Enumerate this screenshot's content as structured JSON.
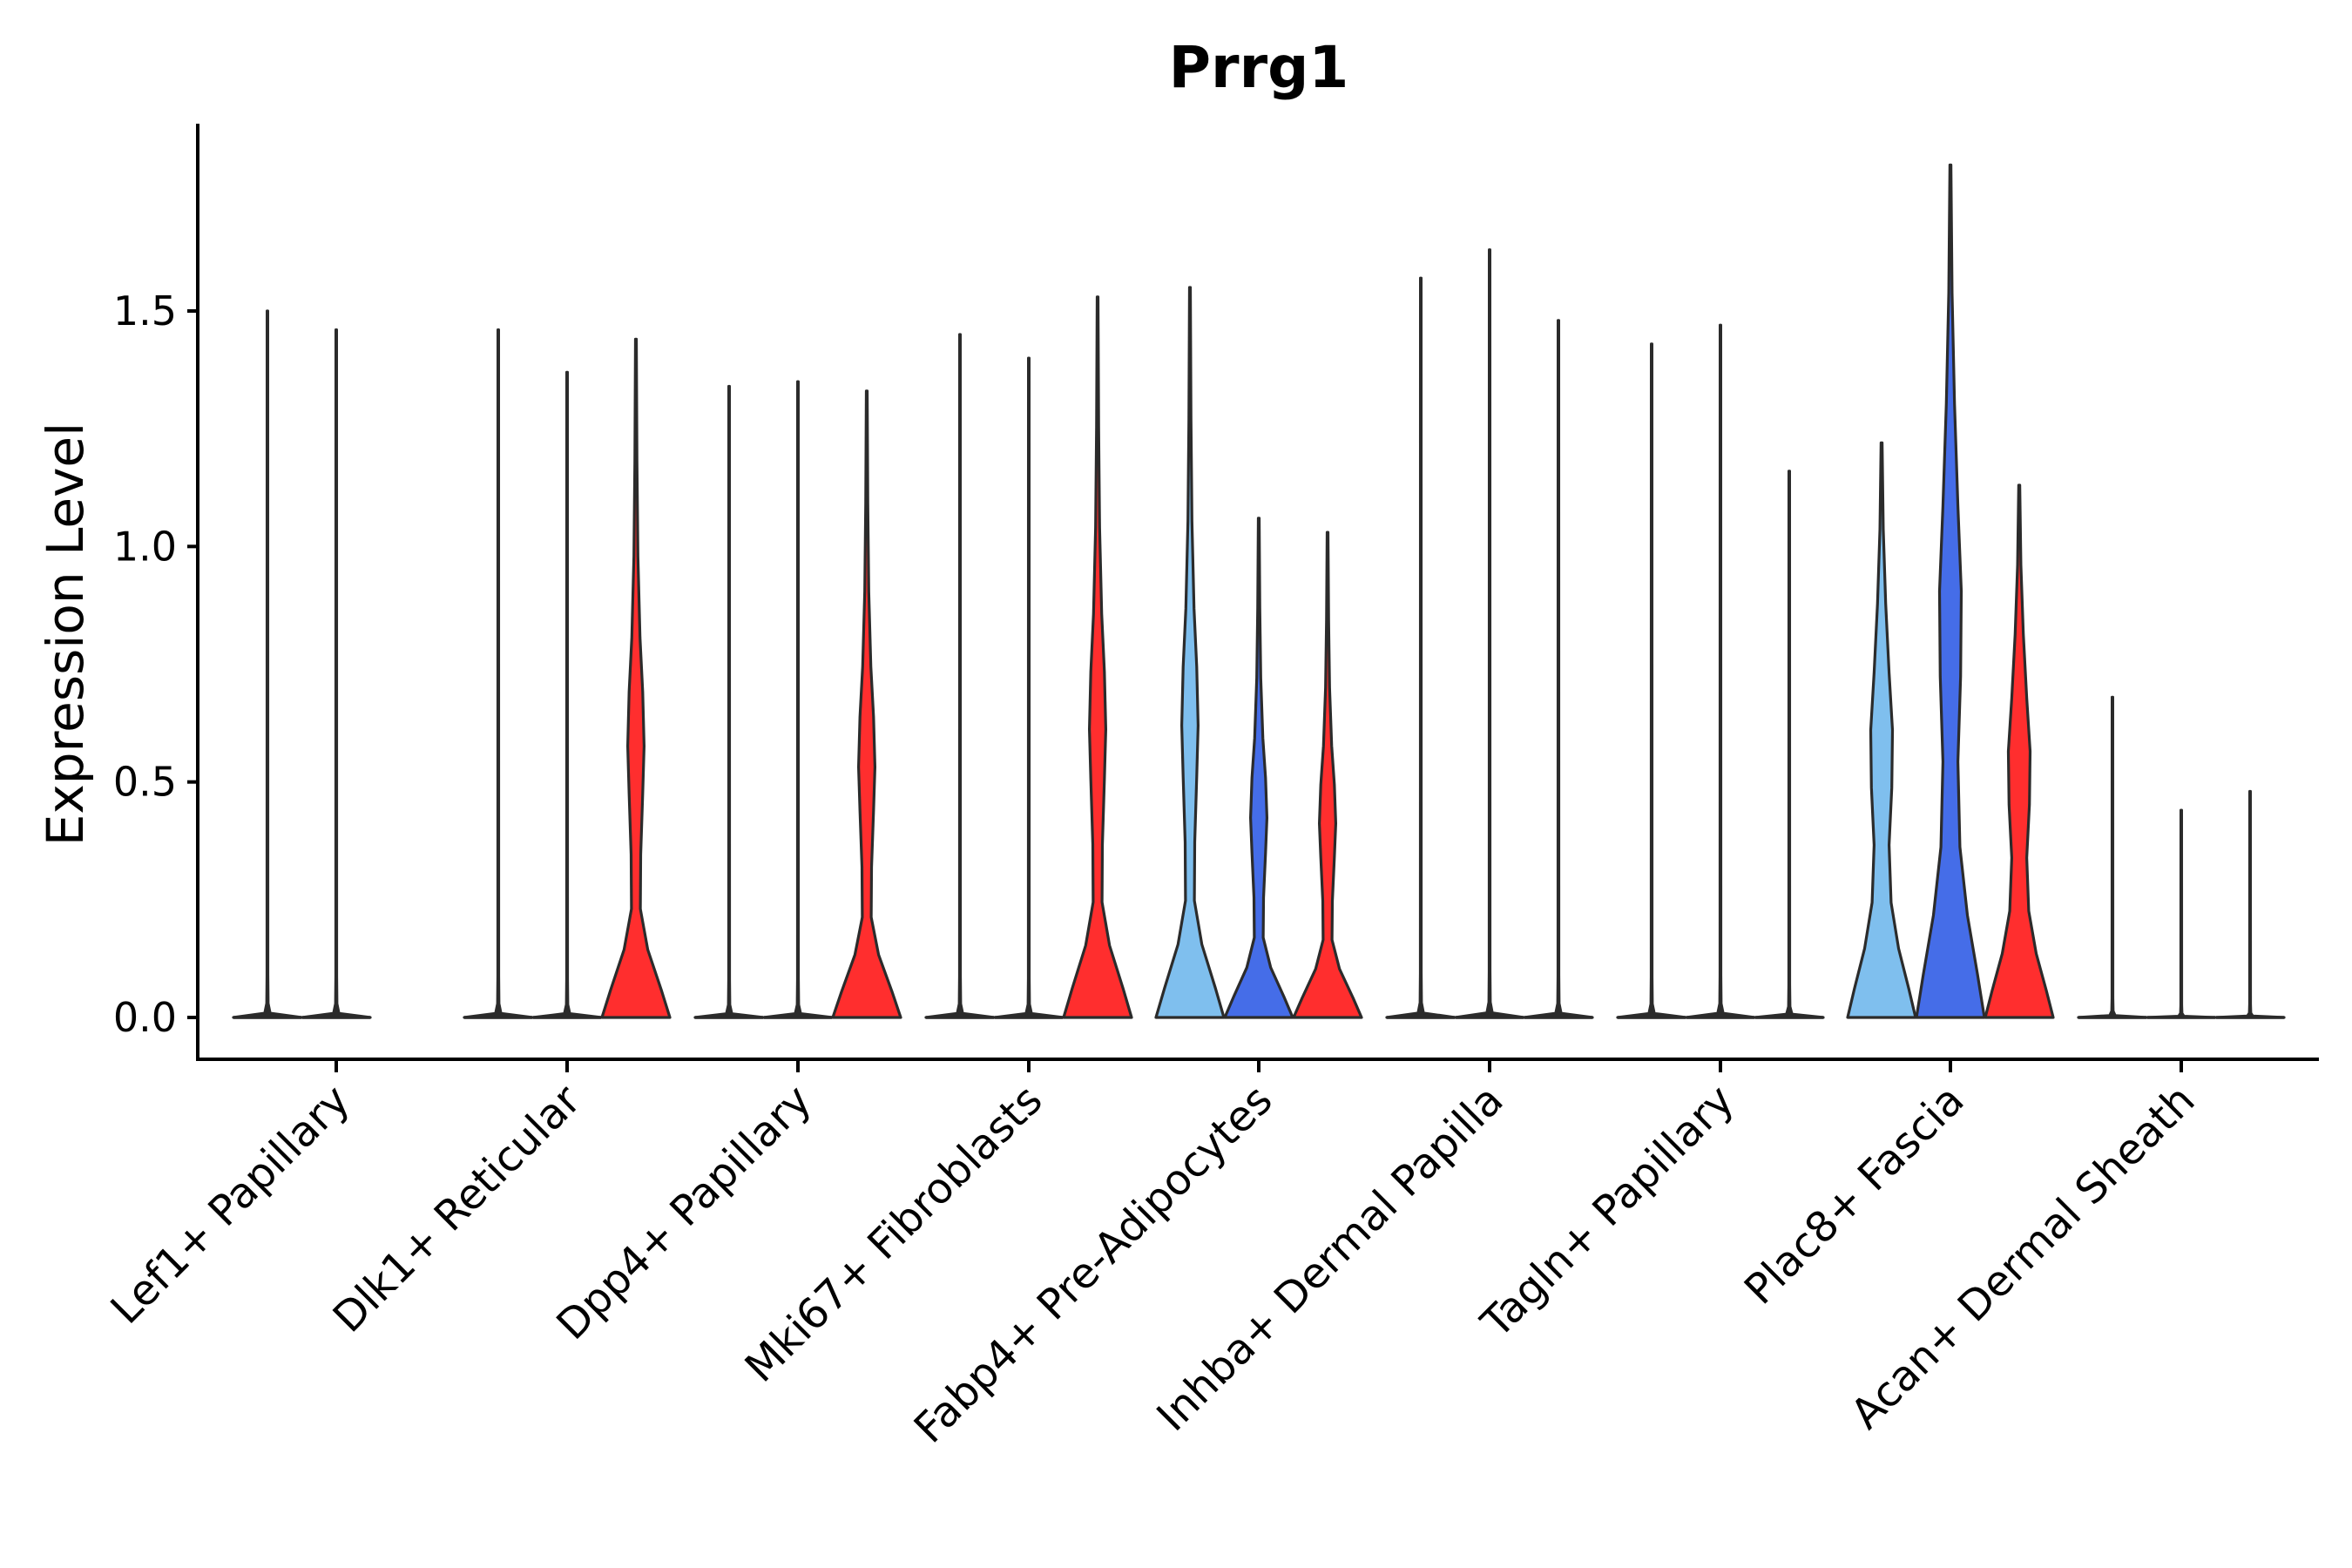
{
  "chart_data": {
    "type": "violin",
    "title": "Prrg1",
    "xlabel": "",
    "ylabel": "Expression Level",
    "ylim": [
      -0.09,
      1.9
    ],
    "yticks": [
      0.0,
      0.5,
      1.0,
      1.5
    ],
    "ytick_labels": [
      "0.0",
      "0.5",
      "1.0",
      "1.5"
    ],
    "legend": "none",
    "group_colors": [
      "#7fbfee",
      "#456de8",
      "#ff2e2e"
    ],
    "categories": [
      "Lef1+ Papillary",
      "Dlk1+ Reticular",
      "Dpp4+ Papillary",
      "Mki67+ Fibroblasts",
      "Fabp4+ Pre-Adipocytes",
      "Inhba+ Dermal Papilla",
      "Tagln+ Papillary",
      "Plac8+ Fascia",
      "Acan+ Dermal Sheath"
    ],
    "violins": [
      [
        {
          "max": 1.5,
          "shape": "thin"
        },
        {
          "max": 1.46,
          "shape": "thin"
        },
        {
          "max": null,
          "shape": "none"
        }
      ],
      [
        {
          "max": 1.46,
          "shape": "thin"
        },
        {
          "max": 1.37,
          "shape": "thin"
        },
        {
          "max": 1.44,
          "shape": "full"
        }
      ],
      [
        {
          "max": 1.34,
          "shape": "thin"
        },
        {
          "max": 1.35,
          "shape": "thin"
        },
        {
          "max": 1.33,
          "shape": "full"
        }
      ],
      [
        {
          "max": 1.45,
          "shape": "thin"
        },
        {
          "max": 1.4,
          "shape": "thin"
        },
        {
          "max": 1.53,
          "shape": "full"
        }
      ],
      [
        {
          "max": 1.55,
          "shape": "full"
        },
        {
          "max": 1.06,
          "shape": "full"
        },
        {
          "max": 1.03,
          "shape": "full"
        }
      ],
      [
        {
          "max": 1.57,
          "shape": "thin"
        },
        {
          "max": 1.63,
          "shape": "thin"
        },
        {
          "max": 1.48,
          "shape": "thin"
        }
      ],
      [
        {
          "max": 1.43,
          "shape": "thin"
        },
        {
          "max": 1.47,
          "shape": "thin"
        },
        {
          "max": 1.16,
          "shape": "thin"
        }
      ],
      [
        {
          "max": 1.22,
          "shape": "wide"
        },
        {
          "max": 1.81,
          "shape": "wide"
        },
        {
          "max": 1.13,
          "shape": "wide"
        }
      ],
      [
        {
          "max": 0.68,
          "shape": "thin"
        },
        {
          "max": 0.44,
          "shape": "thin"
        },
        {
          "max": 0.48,
          "shape": "thin"
        }
      ]
    ]
  }
}
